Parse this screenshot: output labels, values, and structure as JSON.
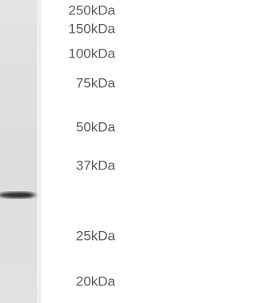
{
  "markers": [
    "250kDa",
    "150kDa",
    "100kDa",
    "75kDa",
    "50kDa",
    "37kDa",
    "25kDa",
    "20kDa"
  ]
}
